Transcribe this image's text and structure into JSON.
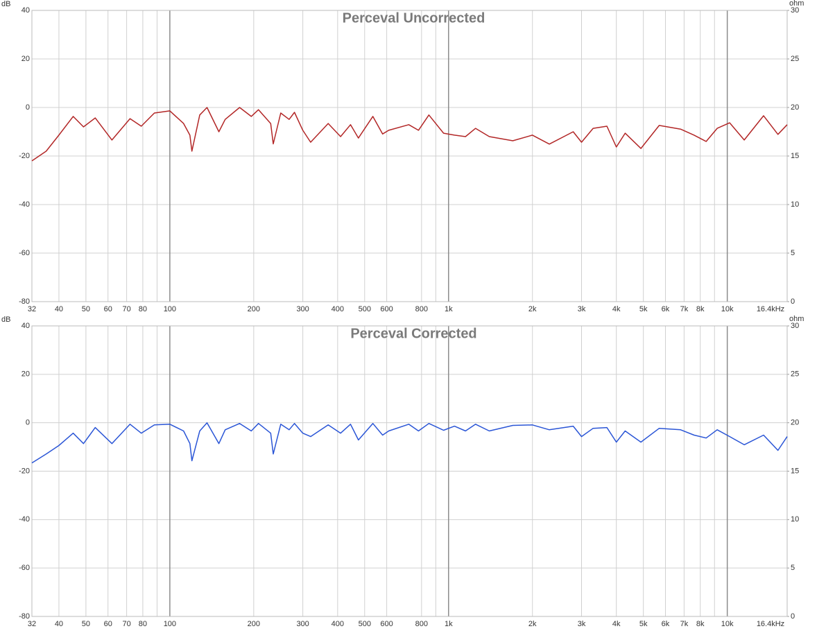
{
  "chart_data": [
    {
      "type": "line",
      "title": "Perceval Uncorrected",
      "ylabel": "dB",
      "y2label": "ohm",
      "xscale": "log",
      "grid": true,
      "x": [
        32,
        36,
        40,
        45,
        49,
        54,
        62,
        72,
        79,
        88,
        100,
        112,
        118,
        120,
        128,
        136,
        150,
        158,
        178,
        196,
        208,
        230,
        235,
        250,
        268,
        280,
        300,
        320,
        370,
        410,
        445,
        475,
        535,
        580,
        610,
        720,
        780,
        850,
        960,
        1050,
        1150,
        1250,
        1400,
        1700,
        2000,
        2300,
        2800,
        3000,
        3300,
        3700,
        4000,
        4300,
        4900,
        5700,
        6800,
        7600,
        8400,
        9200,
        10200,
        11500,
        13500,
        15200,
        16400
      ],
      "series": [
        {
          "name": "Perceval Uncorrected",
          "color": "#b22626",
          "values": [
            -22,
            -18,
            -11.4,
            -3.7,
            -8,
            -4.3,
            -13.4,
            -4.6,
            -7.7,
            -2.3,
            -1.4,
            -6.6,
            -11.4,
            -18,
            -3.1,
            0,
            -10,
            -4.9,
            0,
            -3.7,
            -0.9,
            -6.6,
            -15,
            -2.3,
            -4.9,
            -2,
            -9.4,
            -14.3,
            -6.6,
            -12,
            -7.1,
            -12.6,
            -3.7,
            -10.9,
            -9.4,
            -7.1,
            -9.4,
            -3.1,
            -10.6,
            -11.4,
            -12,
            -8.6,
            -12,
            -13.7,
            -11.4,
            -15.1,
            -10,
            -14.3,
            -8.6,
            -7.7,
            -16.3,
            -10.6,
            -16.9,
            -7.4,
            -8.9,
            -11.4,
            -14,
            -8.6,
            -6.3,
            -13.4,
            -3.4,
            -11.1,
            -7.1
          ]
        }
      ],
      "xlim": [
        32,
        16400
      ],
      "xticks": [
        32,
        40,
        50,
        60,
        70,
        80,
        {
          "value": 90,
          "label": null
        },
        100,
        200,
        300,
        400,
        500,
        600,
        800,
        {
          "value": 900,
          "label": null
        },
        {
          "value": 1000,
          "label": "1k"
        },
        {
          "value": 2000,
          "label": "2k"
        },
        {
          "value": 3000,
          "label": "3k"
        },
        {
          "value": 4000,
          "label": "4k"
        },
        {
          "value": 5000,
          "label": "5k"
        },
        {
          "value": 6000,
          "label": "6k"
        },
        {
          "value": 7000,
          "label": "7k"
        },
        {
          "value": 8000,
          "label": "8k"
        },
        {
          "value": 9000,
          "label": null
        },
        {
          "value": 10000,
          "label": "10k"
        },
        {
          "value": 16400,
          "label": "16.4kHz"
        }
      ],
      "ylim": [
        -80,
        40
      ],
      "yticks": [
        -80,
        -60,
        -40,
        -20,
        0,
        20,
        40
      ],
      "y2lim": [
        0,
        30
      ],
      "y2ticks": [
        0,
        5,
        10,
        15,
        20,
        25,
        30
      ]
    },
    {
      "type": "line",
      "title": "Perceval Corrected",
      "ylabel": "dB",
      "y2label": "ohm",
      "xscale": "log",
      "grid": true,
      "x": [
        32,
        36,
        40,
        45,
        49,
        54,
        62,
        72,
        79,
        88,
        100,
        112,
        118,
        120,
        128,
        136,
        150,
        158,
        178,
        196,
        208,
        230,
        235,
        250,
        268,
        280,
        300,
        320,
        370,
        410,
        445,
        475,
        535,
        580,
        610,
        720,
        780,
        850,
        960,
        1050,
        1150,
        1250,
        1400,
        1700,
        2000,
        2300,
        2800,
        3000,
        3300,
        3700,
        4000,
        4300,
        4900,
        5700,
        6800,
        7600,
        8400,
        9200,
        10200,
        11500,
        13500,
        15200,
        16400
      ],
      "series": [
        {
          "name": "Perceval Corrected",
          "color": "#2a55d6",
          "values": [
            -16.6,
            -12.9,
            -9.4,
            -4.3,
            -8.6,
            -2,
            -8.6,
            -0.6,
            -4.3,
            -0.9,
            -0.6,
            -3.4,
            -8.6,
            -15.7,
            -3.4,
            0,
            -8.6,
            -2.9,
            -0.3,
            -3.4,
            -0.3,
            -4.3,
            -12.9,
            -0.6,
            -2.9,
            -0.3,
            -4.3,
            -5.7,
            -0.9,
            -4.3,
            -0.6,
            -7.1,
            -0.3,
            -5.1,
            -3.4,
            -0.6,
            -3.4,
            -0.3,
            -3.1,
            -1.4,
            -3.4,
            -0.6,
            -3.4,
            -1.1,
            -0.9,
            -2.9,
            -1.4,
            -5.7,
            -2.3,
            -2,
            -8,
            -3.4,
            -8,
            -2.3,
            -2.9,
            -5.1,
            -6.3,
            -2.9,
            -5.7,
            -9.1,
            -5.1,
            -11.4,
            -5.7
          ]
        }
      ],
      "xlim": [
        32,
        16400
      ],
      "xticks": [
        32,
        40,
        50,
        60,
        70,
        80,
        {
          "value": 90,
          "label": null
        },
        100,
        200,
        300,
        400,
        500,
        600,
        800,
        {
          "value": 900,
          "label": null
        },
        {
          "value": 1000,
          "label": "1k"
        },
        {
          "value": 2000,
          "label": "2k"
        },
        {
          "value": 3000,
          "label": "3k"
        },
        {
          "value": 4000,
          "label": "4k"
        },
        {
          "value": 5000,
          "label": "5k"
        },
        {
          "value": 6000,
          "label": "6k"
        },
        {
          "value": 7000,
          "label": "7k"
        },
        {
          "value": 8000,
          "label": "8k"
        },
        {
          "value": 9000,
          "label": null
        },
        {
          "value": 10000,
          "label": "10k"
        },
        {
          "value": 16400,
          "label": "16.4kHz"
        }
      ],
      "ylim": [
        -80,
        40
      ],
      "yticks": [
        -80,
        -60,
        -40,
        -20,
        0,
        20,
        40
      ],
      "y2lim": [
        0,
        30
      ],
      "y2ticks": [
        0,
        5,
        10,
        15,
        20,
        25,
        30
      ]
    }
  ]
}
